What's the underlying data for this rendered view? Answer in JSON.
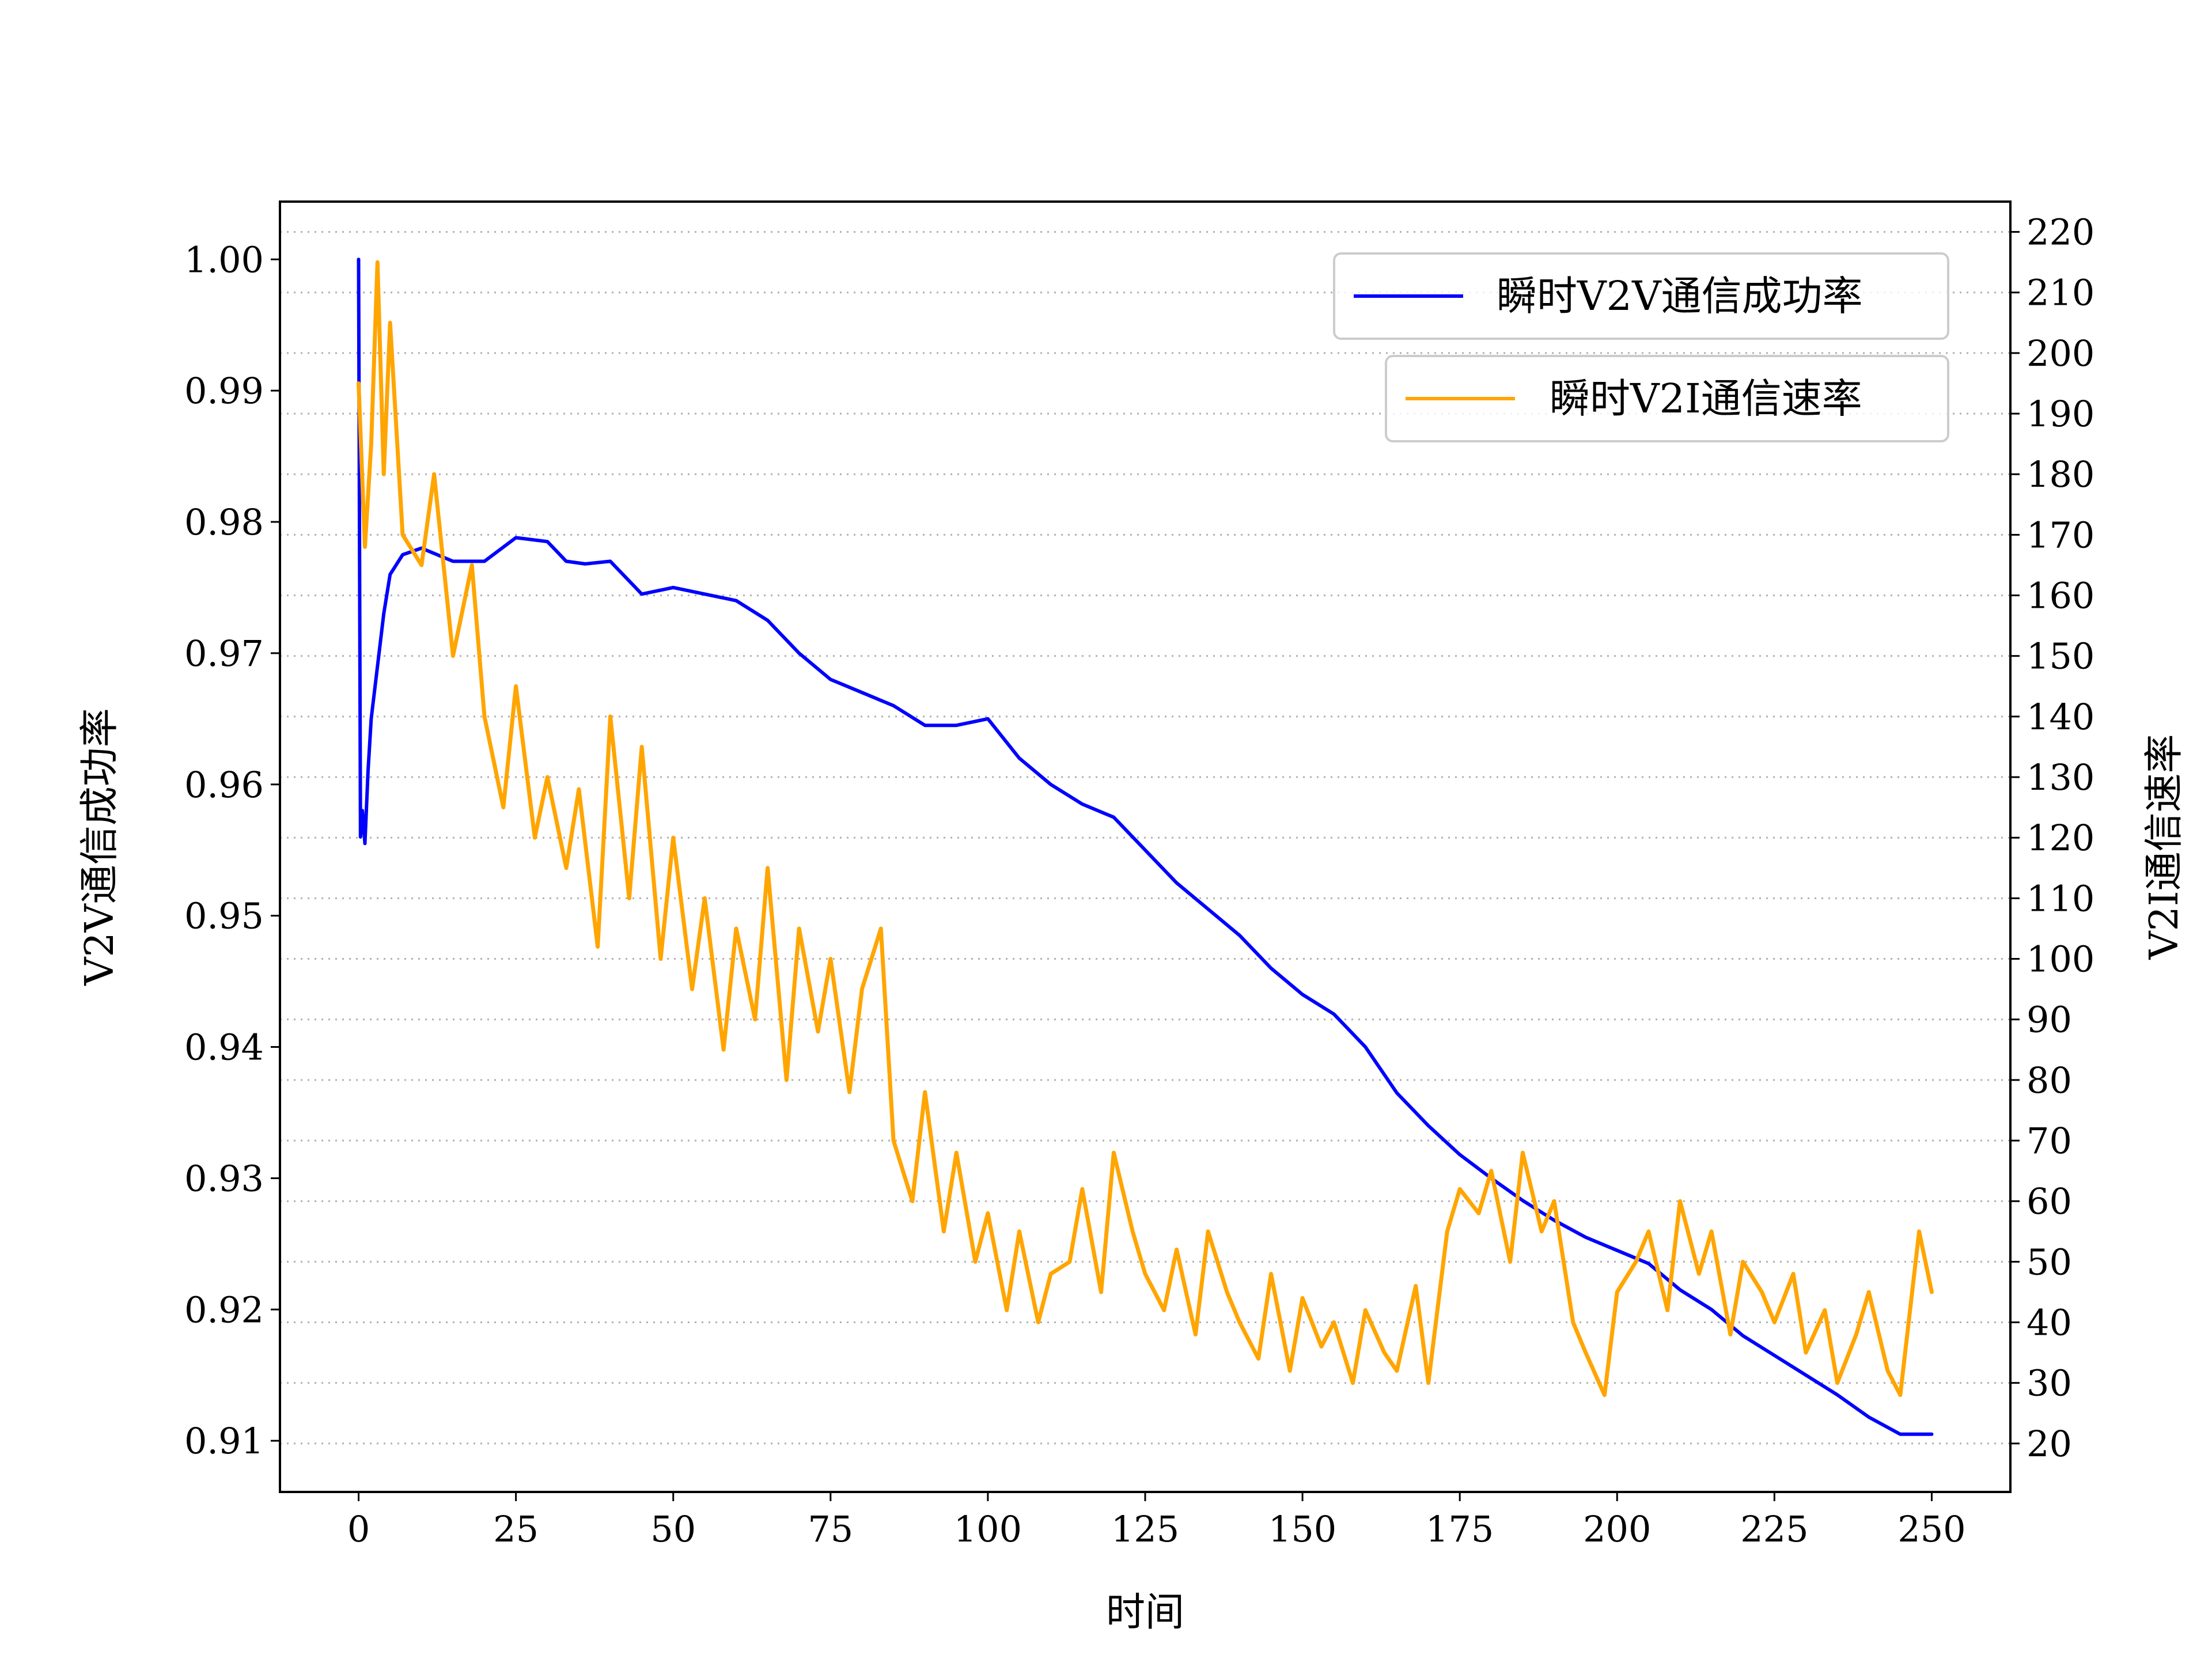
{
  "chart_data": {
    "type": "line",
    "xlabel": "时间",
    "ylabel_left": "V2V通信成功率",
    "ylabel_right": "V2I通信速率",
    "xlim": [
      -12.5,
      262.5
    ],
    "ylim_left": [
      0.9061,
      1.0044
    ],
    "ylim_right": [
      12,
      225
    ],
    "x_ticks": [
      0,
      25,
      50,
      75,
      100,
      125,
      150,
      175,
      200,
      225,
      250
    ],
    "y_left_ticks": [
      0.91,
      0.92,
      0.93,
      0.94,
      0.95,
      0.96,
      0.97,
      0.98,
      0.99,
      1.0
    ],
    "y_left_tick_labels": [
      "0.91",
      "0.92",
      "0.93",
      "0.94",
      "0.95",
      "0.96",
      "0.97",
      "0.98",
      "0.99",
      "1.00"
    ],
    "y_right_ticks": [
      20,
      30,
      40,
      50,
      60,
      70,
      80,
      90,
      100,
      110,
      120,
      130,
      140,
      150,
      160,
      170,
      180,
      190,
      200,
      210,
      220
    ],
    "grid": "horizontal dotted at right-axis ticks",
    "legend_placement": "top-right",
    "colors": {
      "v2v": "#0000ff",
      "v2i": "#ffa500",
      "grid": "#b0b0b0",
      "axes": "#000000"
    },
    "series": [
      {
        "name": "瞬时V2V通信成功率",
        "axis": "left",
        "x": [
          0,
          0.3,
          0.6,
          1,
          1.5,
          2,
          3,
          4,
          5,
          7,
          10,
          15,
          20,
          25,
          30,
          33,
          36,
          40,
          45,
          50,
          55,
          60,
          65,
          70,
          75,
          80,
          85,
          90,
          95,
          100,
          105,
          110,
          115,
          120,
          125,
          130,
          135,
          140,
          145,
          150,
          155,
          160,
          165,
          170,
          175,
          180,
          185,
          190,
          195,
          200,
          205,
          210,
          215,
          220,
          225,
          230,
          235,
          240,
          245,
          250
        ],
        "y": [
          1.0,
          0.956,
          0.958,
          0.9555,
          0.961,
          0.965,
          0.969,
          0.973,
          0.976,
          0.9775,
          0.978,
          0.977,
          0.977,
          0.9788,
          0.9785,
          0.977,
          0.9768,
          0.977,
          0.9745,
          0.975,
          0.9745,
          0.974,
          0.9725,
          0.97,
          0.968,
          0.967,
          0.966,
          0.9645,
          0.9645,
          0.965,
          0.962,
          0.96,
          0.9585,
          0.9575,
          0.955,
          0.9525,
          0.9505,
          0.9485,
          0.946,
          0.944,
          0.9425,
          0.94,
          0.9365,
          0.934,
          0.9318,
          0.93,
          0.9283,
          0.9268,
          0.9255,
          0.9245,
          0.9235,
          0.9215,
          0.92,
          0.918,
          0.9165,
          0.915,
          0.9135,
          0.9118,
          0.9105,
          0.9105
        ]
      },
      {
        "name": "瞬时V2I通信速率",
        "axis": "right",
        "x": [
          0,
          1,
          2,
          3,
          4,
          5,
          7,
          10,
          12,
          15,
          18,
          20,
          23,
          25,
          28,
          30,
          33,
          35,
          38,
          40,
          43,
          45,
          48,
          50,
          53,
          55,
          58,
          60,
          63,
          65,
          68,
          70,
          73,
          75,
          78,
          80,
          83,
          85,
          88,
          90,
          93,
          95,
          98,
          100,
          103,
          105,
          108,
          110,
          113,
          115,
          118,
          120,
          123,
          125,
          128,
          130,
          133,
          135,
          138,
          140,
          143,
          145,
          148,
          150,
          153,
          155,
          158,
          160,
          163,
          165,
          168,
          170,
          173,
          175,
          178,
          180,
          183,
          185,
          188,
          190,
          193,
          195,
          198,
          200,
          203,
          205,
          208,
          210,
          213,
          215,
          218,
          220,
          223,
          225,
          228,
          230,
          233,
          235,
          238,
          240,
          243,
          245,
          248,
          250
        ],
        "y": [
          195,
          168,
          185,
          215,
          180,
          205,
          170,
          165,
          180,
          150,
          165,
          140,
          125,
          145,
          120,
          130,
          115,
          128,
          102,
          140,
          110,
          135,
          100,
          120,
          95,
          110,
          85,
          105,
          90,
          115,
          80,
          105,
          88,
          100,
          78,
          95,
          105,
          70,
          60,
          78,
          55,
          68,
          50,
          58,
          42,
          55,
          40,
          48,
          50,
          62,
          45,
          68,
          55,
          48,
          42,
          52,
          38,
          55,
          45,
          40,
          34,
          48,
          32,
          44,
          36,
          40,
          30,
          42,
          35,
          32,
          46,
          30,
          55,
          62,
          58,
          65,
          50,
          68,
          55,
          60,
          40,
          35,
          28,
          45,
          50,
          55,
          42,
          60,
          48,
          55,
          38,
          50,
          45,
          40,
          48,
          35,
          42,
          30,
          38,
          45,
          32,
          28,
          55,
          45
        ]
      }
    ]
  }
}
